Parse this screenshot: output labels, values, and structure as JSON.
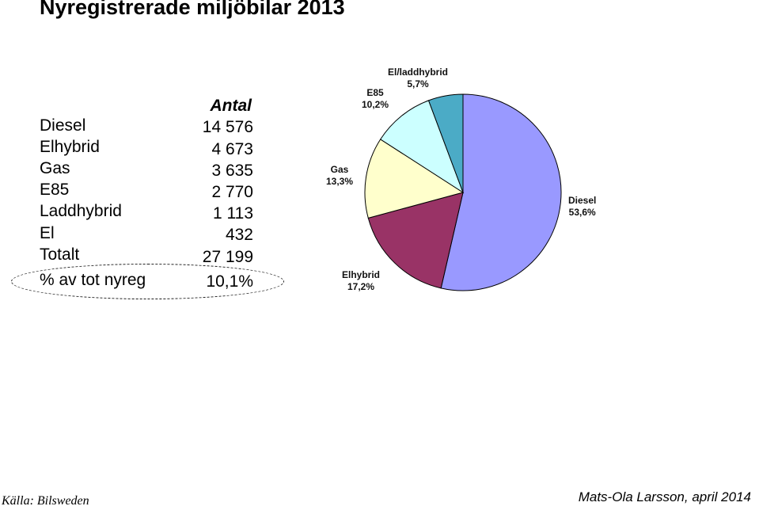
{
  "page": {
    "title": "Nyregistrerade miljöbilar 2013",
    "source": "Källa: Bilsweden",
    "author": "Mats-Ola Larsson, april 2014"
  },
  "table": {
    "header": "Antal",
    "rows": [
      {
        "label": "Diesel",
        "value": "14 576"
      },
      {
        "label": "Elhybrid",
        "value": "4 673"
      },
      {
        "label": "Gas",
        "value": "3 635"
      },
      {
        "label": "E85",
        "value": "2 770"
      },
      {
        "label": "Laddhybrid",
        "value": "1 113"
      },
      {
        "label": "El",
        "value": "432"
      },
      {
        "label": "Totalt",
        "value": "27 199"
      },
      {
        "label": "% av tot nyreg",
        "value": "10,1%"
      }
    ]
  },
  "chart_data": {
    "type": "pie",
    "slices": [
      {
        "name": "Diesel",
        "value": 53.6,
        "label": "53,6%",
        "color": "#9999ff"
      },
      {
        "name": "Elhybrid",
        "value": 17.2,
        "label": "17,2%",
        "color": "#993366"
      },
      {
        "name": "Gas",
        "value": 13.3,
        "label": "13,3%",
        "color": "#ffffcc"
      },
      {
        "name": "E85",
        "value": 10.2,
        "label": "10,2%",
        "color": "#ccffff"
      },
      {
        "name": "El/laddhybrid",
        "value": 5.7,
        "label": "5,7%",
        "color": "#4babc6"
      }
    ]
  }
}
